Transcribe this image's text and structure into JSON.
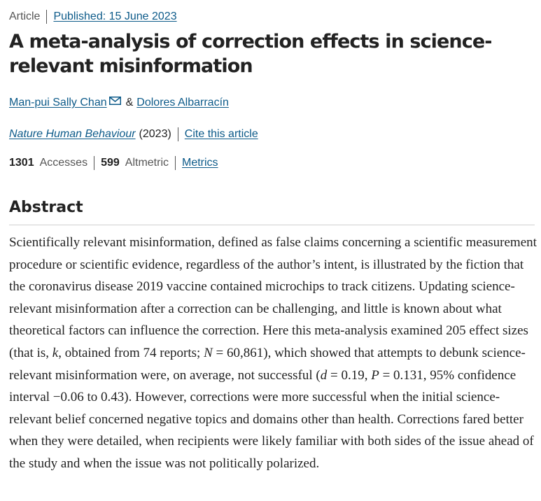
{
  "header": {
    "article_type": "Article",
    "published_label": "Published: 15 June 2023"
  },
  "article": {
    "title": "A meta-analysis of correction effects in science-relevant misinformation",
    "authors": [
      {
        "name": "Man-pui Sally Chan",
        "has_email_icon": true
      },
      {
        "name": "Dolores Albarracín",
        "has_email_icon": false
      }
    ],
    "author_separator": "&",
    "journal": "Nature Human Behaviour",
    "year": "(2023)",
    "cite_label": "Cite this article"
  },
  "metrics": {
    "accesses_value": "1301",
    "accesses_label": "Accesses",
    "altmetric_value": "599",
    "altmetric_label": "Altmetric",
    "metrics_link": "Metrics"
  },
  "abstract": {
    "heading": "Abstract",
    "text_part1": "Scientifically relevant misinformation, defined as false claims concerning a scientific measurement procedure or scientific evidence, regardless of the author’s intent, is illustrated by the fiction that the coronavirus disease 2019 vaccine contained microchips to track citizens. Updating science-relevant misinformation after a correction can be challenging, and little is known about what theoretical factors can influence the correction. Here this meta-analysis examined 205 effect sizes (that is, ",
    "k": "k",
    "text_part2": ", obtained from 74 reports; ",
    "N": "N",
    "text_part3": " = 60,861), which showed that attempts to debunk science-relevant misinformation were, on average, not successful (",
    "d": "d",
    "text_part4": " = 0.19, ",
    "P": "P",
    "text_part5": " = 0.131, 95% confidence interval −0.06 to 0.43). However, corrections were more successful when the initial science-relevant belief concerned negative topics and domains other than health. Corrections fared better when they were detailed, when recipients were likely familiar with both sides of the issue ahead of the study and when the issue was not politically polarized."
  },
  "colors": {
    "link": "#0c5a89",
    "text": "#222222",
    "muted": "#555555",
    "rule": "#cfcfcf"
  },
  "icons": {
    "email": "email-icon"
  }
}
